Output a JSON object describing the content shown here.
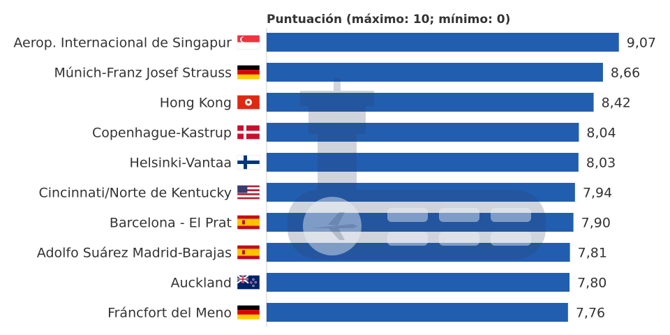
{
  "chart_data": {
    "type": "bar",
    "orientation": "horizontal",
    "axis_title": "Puntuación (máximo: 10; mínimo: 0)",
    "xlim": [
      0,
      10
    ],
    "bar_color": "#225eb0",
    "decimal_separator": ",",
    "categories": [
      {
        "label": "Aerop. Internacional de Singapur",
        "value": 9.07,
        "flag": "singapore-flag",
        "value_label": "9,07"
      },
      {
        "label": "Múnich-Franz Josef Strauss",
        "value": 8.66,
        "flag": "germany-flag",
        "value_label": "8,66"
      },
      {
        "label": "Hong Kong",
        "value": 8.42,
        "flag": "hong-kong-flag",
        "value_label": "8,42"
      },
      {
        "label": "Copenhague-Kastrup",
        "value": 8.04,
        "flag": "denmark-flag",
        "value_label": "8,04"
      },
      {
        "label": "Helsinki-Vantaa",
        "value": 8.03,
        "flag": "finland-flag",
        "value_label": "8,03"
      },
      {
        "label": "Cincinnati/Norte de Kentucky",
        "value": 7.94,
        "flag": "usa-flag",
        "value_label": "7,94"
      },
      {
        "label": "Barcelona - El Prat",
        "value": 7.9,
        "flag": "spain-flag",
        "value_label": "7,90"
      },
      {
        "label": "Adolfo Suárez Madrid-Barajas",
        "value": 7.81,
        "flag": "spain-flag",
        "value_label": "7,81"
      },
      {
        "label": "Auckland",
        "value": 7.8,
        "flag": "new-zealand-flag",
        "value_label": "7,80"
      },
      {
        "label": "Fráncfort del Meno",
        "value": 7.76,
        "flag": "germany-flag",
        "value_label": "7,76"
      }
    ]
  }
}
